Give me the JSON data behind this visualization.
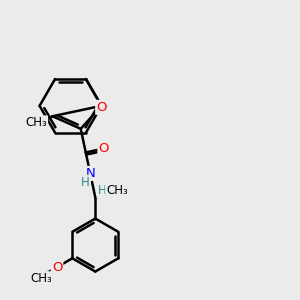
{
  "bg_color": "#ebebeb",
  "bond_color": "#000000",
  "bond_width": 1.8,
  "figsize": [
    3.0,
    3.0
  ],
  "dpi": 100,
  "xlim": [
    0,
    10
  ],
  "ylim": [
    0,
    10
  ]
}
